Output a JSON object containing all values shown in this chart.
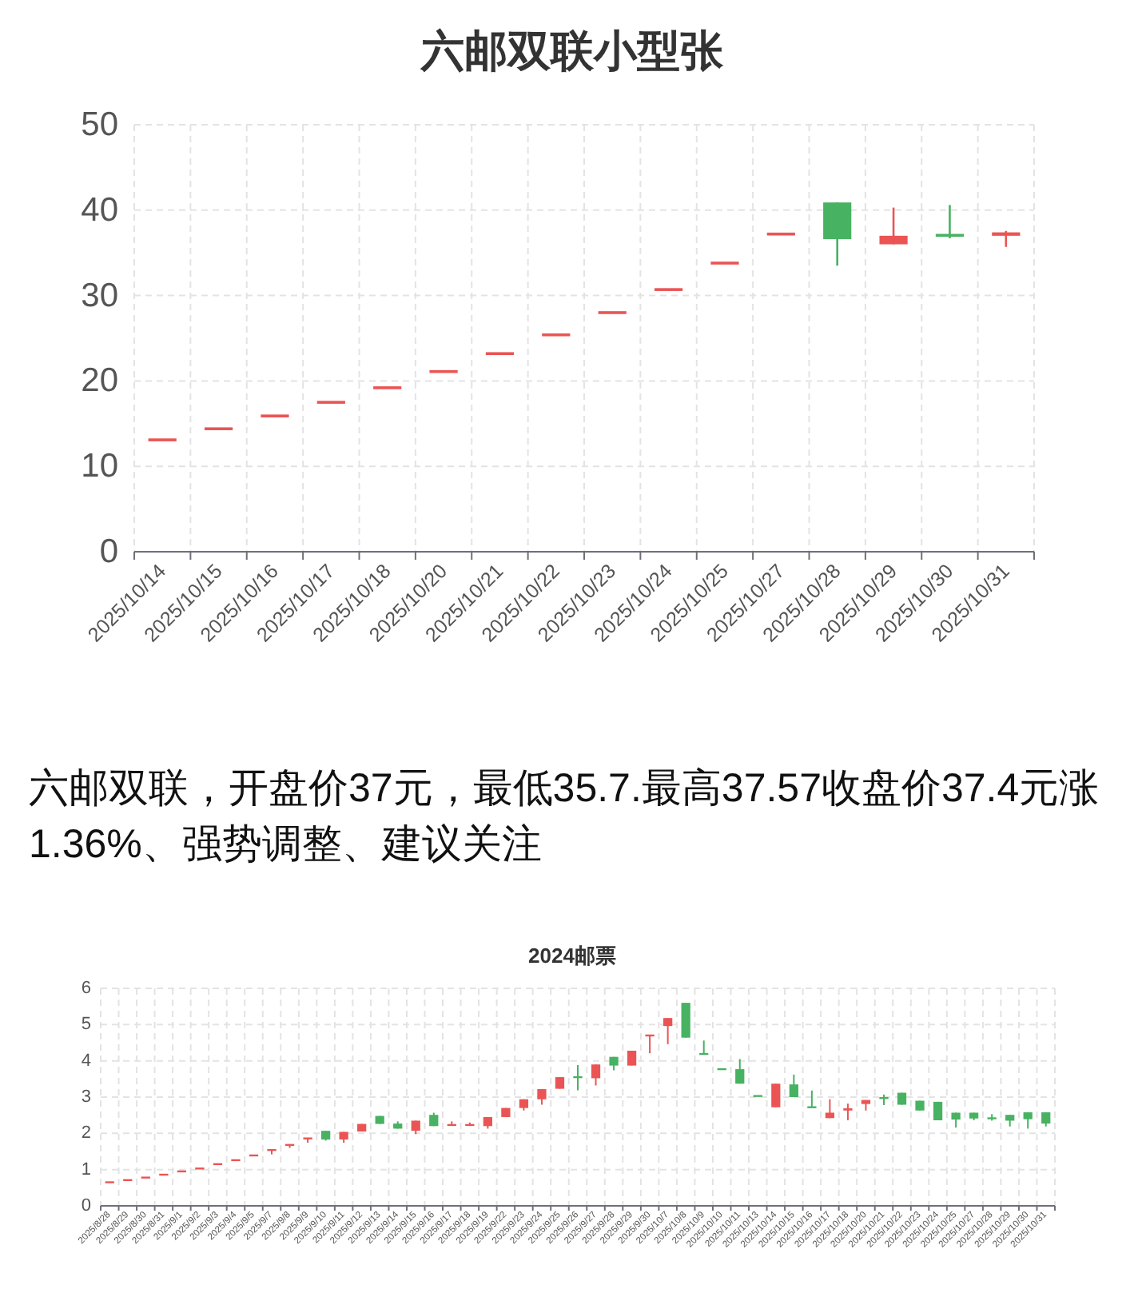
{
  "chart_data": [
    {
      "type": "candlestick",
      "title": "六邮双联小型张",
      "categories": [
        "2025/10/14",
        "2025/10/15",
        "2025/10/16",
        "2025/10/17",
        "2025/10/18",
        "2025/10/20",
        "2025/10/21",
        "2025/10/22",
        "2025/10/23",
        "2025/10/24",
        "2025/10/25",
        "2025/10/27",
        "2025/10/28",
        "2025/10/29",
        "2025/10/30",
        "2025/10/31"
      ],
      "ohlc": [
        [
          13.1,
          13.1,
          13.1,
          13.1
        ],
        [
          14.4,
          14.4,
          14.4,
          14.4
        ],
        [
          15.9,
          15.9,
          15.9,
          15.9
        ],
        [
          17.5,
          17.5,
          17.5,
          17.5
        ],
        [
          19.2,
          19.2,
          19.2,
          19.2
        ],
        [
          21.1,
          21.1,
          21.1,
          21.1
        ],
        [
          23.2,
          23.2,
          23.2,
          23.2
        ],
        [
          25.4,
          25.4,
          25.4,
          25.4
        ],
        [
          28.0,
          28.0,
          28.0,
          28.0
        ],
        [
          30.7,
          30.7,
          30.7,
          30.7
        ],
        [
          33.8,
          33.8,
          33.8,
          33.8
        ],
        [
          37.2,
          37.2,
          37.2,
          37.2
        ],
        [
          40.9,
          40.9,
          33.5,
          36.6
        ],
        [
          36.0,
          40.3,
          36.0,
          37.0
        ],
        [
          37.1,
          40.6,
          36.7,
          37.0
        ],
        [
          37.0,
          37.57,
          35.7,
          37.4
        ]
      ],
      "colors": [
        "#eb5454",
        "#eb5454",
        "#eb5454",
        "#eb5454",
        "#eb5454",
        "#eb5454",
        "#eb5454",
        "#eb5454",
        "#eb5454",
        "#eb5454",
        "#eb5454",
        "#eb5454",
        "#47b262",
        "#eb5454",
        "#47b262",
        "#eb5454"
      ],
      "ylim": [
        0,
        50
      ],
      "yticks": [
        0,
        10,
        20,
        30,
        40,
        50
      ],
      "grid": true,
      "annotations": [
        "六邮双联，开盘价37元，最低35.7.最高37.57收盘价37.4元涨1.36%、强势调整、建议关注"
      ]
    },
    {
      "type": "candlestick",
      "title": "2024邮票",
      "categories": [
        "2025/8/28",
        "2025/8/29",
        "2025/8/30",
        "2025/8/31",
        "2025/9/1",
        "2025/9/2",
        "2025/9/3",
        "2025/9/4",
        "2025/9/5",
        "2025/9/7",
        "2025/9/8",
        "2025/9/9",
        "2025/9/10",
        "2025/9/11",
        "2025/9/12",
        "2025/9/13",
        "2025/9/14",
        "2025/9/15",
        "2025/9/16",
        "2025/9/17",
        "2025/9/18",
        "2025/9/19",
        "2025/9/22",
        "2025/9/23",
        "2025/9/24",
        "2025/9/25",
        "2025/9/26",
        "2025/9/27",
        "2025/9/28",
        "2025/9/29",
        "2025/9/30",
        "2025/10/7",
        "2025/10/8",
        "2025/10/9",
        "2025/10/10",
        "2025/10/11",
        "2025/10/13",
        "2025/10/14",
        "2025/10/15",
        "2025/10/16",
        "2025/10/17",
        "2025/10/18",
        "2025/10/20",
        "2025/10/21",
        "2025/10/22",
        "2025/10/23",
        "2025/10/24",
        "2025/10/25",
        "2025/10/27",
        "2025/10/28",
        "2025/10/29",
        "2025/10/30",
        "2025/10/31"
      ],
      "ohlc": [
        [
          0.65,
          0.65,
          0.65,
          0.65
        ],
        [
          0.71,
          0.71,
          0.71,
          0.71
        ],
        [
          0.78,
          0.78,
          0.78,
          0.78
        ],
        [
          0.86,
          0.86,
          0.86,
          0.86
        ],
        [
          0.95,
          0.95,
          0.95,
          0.95
        ],
        [
          1.03,
          1.03,
          1.03,
          1.03
        ],
        [
          1.15,
          1.15,
          1.15,
          1.15
        ],
        [
          1.26,
          1.26,
          1.26,
          1.26
        ],
        [
          1.39,
          1.39,
          1.39,
          1.39
        ],
        [
          1.54,
          1.54,
          1.42,
          1.54
        ],
        [
          1.68,
          1.68,
          1.6,
          1.68
        ],
        [
          1.86,
          1.86,
          1.74,
          1.86
        ],
        [
          2.07,
          2.07,
          1.8,
          1.83
        ],
        [
          1.83,
          2.04,
          1.74,
          2.04
        ],
        [
          2.05,
          2.26,
          2.05,
          2.26
        ],
        [
          2.48,
          2.48,
          2.26,
          2.26
        ],
        [
          2.27,
          2.33,
          2.13,
          2.13
        ],
        [
          2.07,
          2.35,
          1.98,
          2.35
        ],
        [
          2.51,
          2.57,
          2.2,
          2.2
        ],
        [
          2.23,
          2.33,
          2.23,
          2.23
        ],
        [
          2.23,
          2.3,
          2.23,
          2.23
        ],
        [
          2.2,
          2.45,
          2.13,
          2.45
        ],
        [
          2.45,
          2.7,
          2.45,
          2.7
        ],
        [
          2.7,
          2.94,
          2.63,
          2.94
        ],
        [
          2.94,
          3.22,
          2.79,
          3.22
        ],
        [
          3.23,
          3.55,
          3.23,
          3.55
        ],
        [
          3.56,
          3.88,
          3.19,
          3.54
        ],
        [
          3.52,
          3.9,
          3.32,
          3.9
        ],
        [
          4.11,
          4.11,
          3.74,
          3.87
        ],
        [
          3.87,
          4.28,
          3.87,
          4.28
        ],
        [
          4.7,
          4.7,
          4.21,
          4.7
        ],
        [
          4.96,
          5.18,
          4.46,
          5.18
        ],
        [
          5.6,
          5.6,
          4.64,
          4.64
        ],
        [
          4.2,
          4.56,
          4.18,
          4.18
        ],
        [
          3.77,
          3.77,
          3.77,
          3.77
        ],
        [
          3.77,
          4.05,
          3.37,
          3.37
        ],
        [
          3.03,
          3.03,
          3.03,
          3.03
        ],
        [
          2.72,
          3.37,
          2.72,
          3.37
        ],
        [
          3.35,
          3.62,
          3.0,
          3.0
        ],
        [
          2.72,
          3.18,
          2.72,
          2.72
        ],
        [
          2.42,
          2.94,
          2.42,
          2.57
        ],
        [
          2.63,
          2.82,
          2.36,
          2.69
        ],
        [
          2.81,
          2.92,
          2.63,
          2.92
        ],
        [
          3.0,
          3.07,
          2.78,
          2.95
        ],
        [
          3.12,
          3.12,
          2.79,
          2.79
        ],
        [
          2.9,
          2.9,
          2.63,
          2.63
        ],
        [
          2.87,
          2.87,
          2.36,
          2.36
        ],
        [
          2.57,
          2.57,
          2.16,
          2.38
        ],
        [
          2.57,
          2.57,
          2.36,
          2.41
        ],
        [
          2.44,
          2.53,
          2.35,
          2.39
        ],
        [
          2.51,
          2.51,
          2.19,
          2.35
        ],
        [
          2.58,
          2.58,
          2.13,
          2.39
        ],
        [
          2.58,
          2.58,
          2.19,
          2.27
        ]
      ],
      "colors": [
        "#eb5454",
        "#eb5454",
        "#eb5454",
        "#eb5454",
        "#eb5454",
        "#eb5454",
        "#eb5454",
        "#eb5454",
        "#eb5454",
        "#eb5454",
        "#eb5454",
        "#eb5454",
        "#47b262",
        "#eb5454",
        "#eb5454",
        "#47b262",
        "#47b262",
        "#eb5454",
        "#47b262",
        "#eb5454",
        "#eb5454",
        "#eb5454",
        "#eb5454",
        "#eb5454",
        "#eb5454",
        "#eb5454",
        "#47b262",
        "#eb5454",
        "#47b262",
        "#eb5454",
        "#eb5454",
        "#eb5454",
        "#47b262",
        "#47b262",
        "#47b262",
        "#47b262",
        "#47b262",
        "#eb5454",
        "#47b262",
        "#47b262",
        "#eb5454",
        "#eb5454",
        "#eb5454",
        "#47b262",
        "#47b262",
        "#47b262",
        "#47b262",
        "#47b262",
        "#47b262",
        "#47b262",
        "#47b262",
        "#47b262",
        "#47b262"
      ],
      "ylim": [
        0,
        6
      ],
      "yticks": [
        0,
        1,
        2,
        3,
        4,
        5,
        6
      ],
      "grid": true
    }
  ]
}
